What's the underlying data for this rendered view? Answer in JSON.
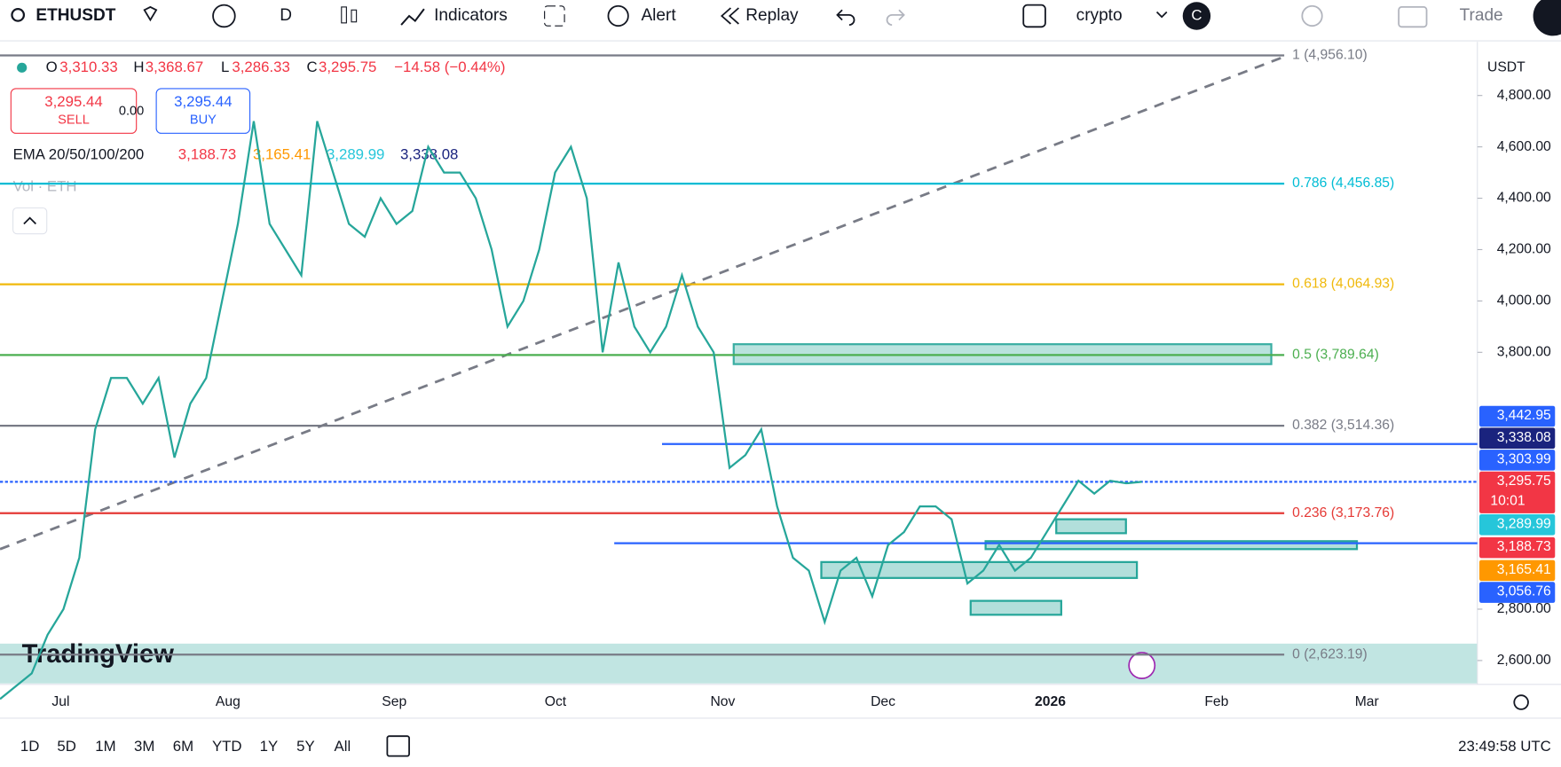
{
  "toolbar": {
    "symbol": "ETHUSDT",
    "interval": "D",
    "indicators": "Indicators",
    "alert": "Alert",
    "replay": "Replay",
    "layout": "crypto",
    "avatar": "C",
    "trade": "Trade"
  },
  "ohlc": {
    "o_label": "O",
    "o": "3,310.33",
    "h_label": "H",
    "h": "3,368.67",
    "l_label": "L",
    "l": "3,286.33",
    "c_label": "C",
    "c": "3,295.75",
    "change": "−14.58 (−0.44%)"
  },
  "trade_buttons": {
    "sell_price": "3,295.44",
    "sell": "SELL",
    "spread": "0.00",
    "buy_price": "3,295.44",
    "buy": "BUY"
  },
  "ema": {
    "label": "EMA 20/50/100/200",
    "values": [
      "3,188.73",
      "3,165.41",
      "3,289.99",
      "3,338.08"
    ]
  },
  "volume": "Vol · ETH",
  "watermark": "TradingView",
  "chart_data": {
    "type": "line",
    "currency": "USDT",
    "color": "#26a69a",
    "ylim": [
      2507,
      5009
    ],
    "yticks": [
      {
        "value": 2600,
        "label": "2,600.00"
      },
      {
        "value": 2800,
        "label": "2,800.00"
      },
      {
        "value": 3800,
        "label": "3,800.00"
      },
      {
        "value": 4000,
        "label": "4,000.00"
      },
      {
        "value": 4200,
        "label": "4,200.00"
      },
      {
        "value": 4400,
        "label": "4,400.00"
      },
      {
        "value": 4600,
        "label": "4,600.00"
      },
      {
        "value": 4800,
        "label": "4,800.00"
      }
    ],
    "values": [
      2450,
      2500,
      2550,
      2700,
      2800,
      3000,
      3500,
      3700,
      3700,
      3600,
      3700,
      3390,
      3600,
      3700,
      4000,
      4300,
      4700,
      4300,
      4200,
      4100,
      4700,
      4500,
      4300,
      4250,
      4400,
      4300,
      4350,
      4600,
      4500,
      4500,
      4400,
      4200,
      3900,
      4000,
      4200,
      4500,
      4600,
      4400,
      3800,
      4150,
      3900,
      3800,
      3900,
      4100,
      3900,
      3800,
      3350,
      3400,
      3500,
      3200,
      3000,
      2950,
      2750,
      2950,
      3000,
      2850,
      3050,
      3100,
      3200,
      3200,
      3150,
      2900,
      2950,
      3050,
      2950,
      3000,
      3100,
      3200,
      3300,
      3250,
      3300,
      3290,
      3295.75
    ],
    "month_labels": [
      "Jul",
      "Aug",
      "Sep",
      "Oct",
      "Nov",
      "Dec",
      "2026",
      "Feb",
      "Mar"
    ],
    "fib_levels": [
      {
        "label": "1 (4,956.10)",
        "value": 4956.1,
        "color": "#787b86"
      },
      {
        "label": "0.786 (4,456.85)",
        "value": 4456.85,
        "color": "#00bcd4"
      },
      {
        "label": "0.618 (4,064.93)",
        "value": 4064.93,
        "color": "#f0b90b"
      },
      {
        "label": "0.5 (3,789.64)",
        "value": 3789.64,
        "color": "#4caf50"
      },
      {
        "label": "0.382 (3,514.36)",
        "value": 3514.36,
        "color": "#787b86"
      },
      {
        "label": "0.236 (3,173.76)",
        "value": 3173.76,
        "color": "#e53935"
      },
      {
        "label": "0 (2,623.19)",
        "value": 2623.19,
        "color": "#787b86"
      }
    ],
    "price_labels": [
      {
        "value": 3442.95,
        "label": "3,442.95",
        "color": "#2962ff"
      },
      {
        "value": 3338.08,
        "label": "3,338.08",
        "color": "#1a237e"
      },
      {
        "value": 3303.99,
        "label": "3,303.99",
        "color": "#2962ff"
      },
      {
        "value": 3295.75,
        "label": "3,295.75",
        "color": "#f23645"
      },
      {
        "value": 3289.99,
        "label": "3,289.99",
        "color": "#26c6da"
      },
      {
        "value": 3188.73,
        "label": "3,188.73",
        "color": "#f23645"
      },
      {
        "value": 3165.41,
        "label": "3,165.41",
        "color": "#ff9800"
      },
      {
        "value": 3056.76,
        "label": "3,056.76",
        "color": "#2962ff"
      }
    ],
    "countdown": "10:01"
  },
  "timeframes": [
    "1D",
    "5D",
    "1M",
    "3M",
    "6M",
    "YTD",
    "1Y",
    "5Y",
    "All"
  ],
  "clock": "23:49:58 UTC"
}
